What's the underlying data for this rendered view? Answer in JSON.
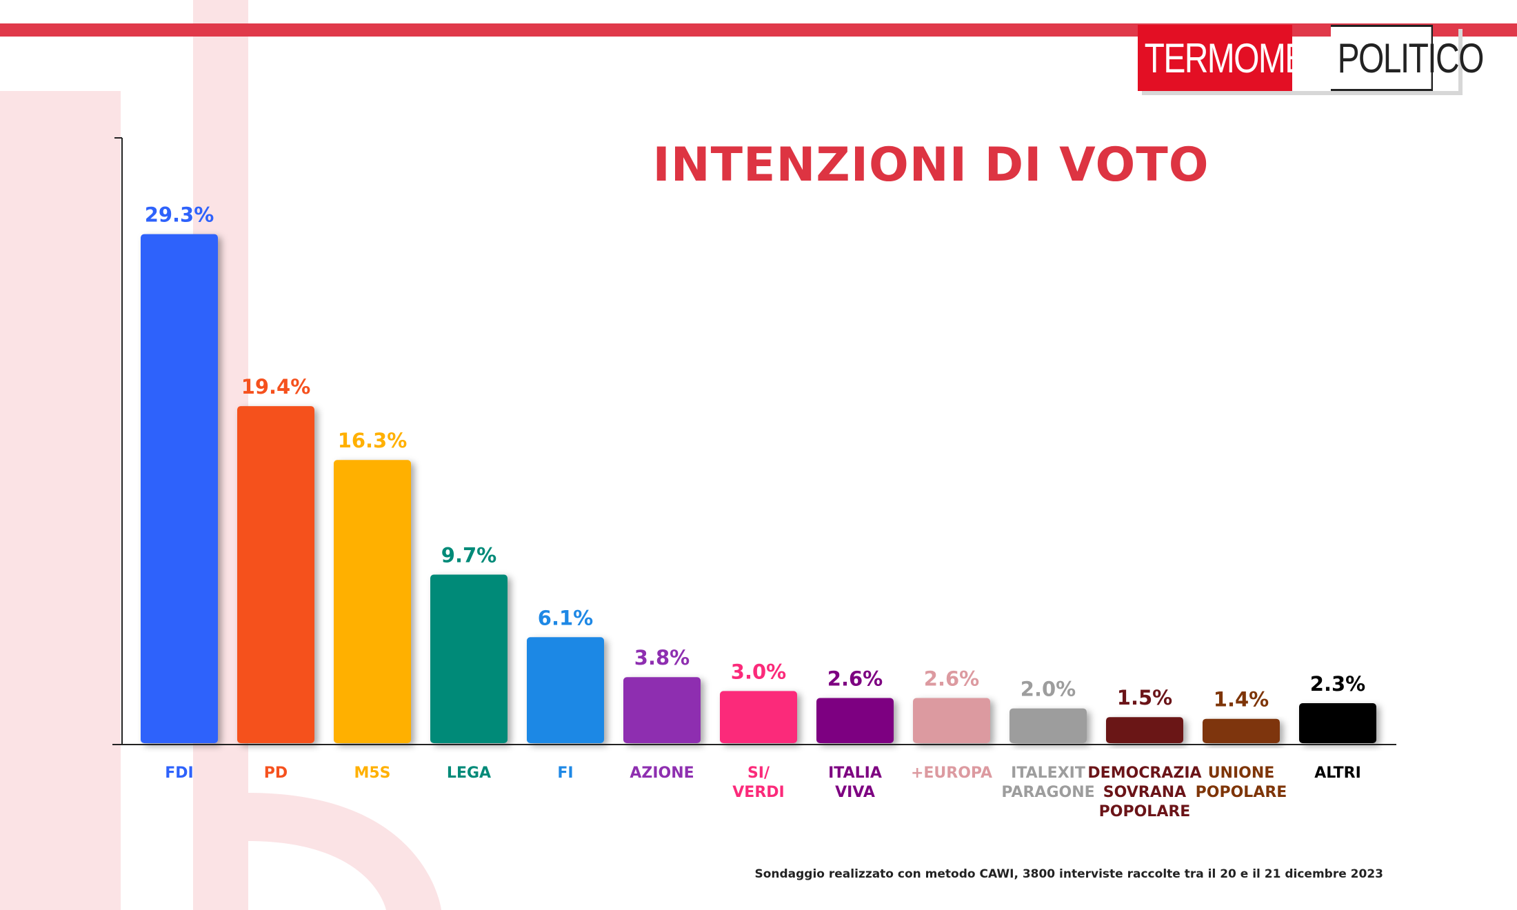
{
  "header": {
    "logo_left": "TERMOMETRO",
    "logo_right": "POLITICO",
    "stripe_color": "#e0394a"
  },
  "chart_data": {
    "type": "bar",
    "title": "INTENZIONI DI VOTO",
    "categories": [
      [
        "FDI"
      ],
      [
        "PD"
      ],
      [
        "M5S"
      ],
      [
        "LEGA"
      ],
      [
        "FI"
      ],
      [
        "AZIONE"
      ],
      [
        "SI/",
        "VERDI"
      ],
      [
        "ITALIA",
        "VIVA"
      ],
      [
        "+EUROPA"
      ],
      [
        "ITALEXIT",
        "PARAGONE"
      ],
      [
        "DEMOCRAZIA",
        "SOVRANA",
        "POPOLARE"
      ],
      [
        "UNIONE",
        "POPOLARE"
      ],
      [
        "ALTRI"
      ]
    ],
    "values": [
      29.3,
      19.4,
      16.3,
      9.7,
      6.1,
      3.8,
      3.0,
      2.6,
      2.6,
      2.0,
      1.5,
      1.4,
      2.3
    ],
    "value_labels": [
      "29.3%",
      "19.4%",
      "16.3%",
      "9.7%",
      "6.1%",
      "3.8%",
      "3.0%",
      "2.6%",
      "2.6%",
      "2.0%",
      "1.5%",
      "1.4%",
      "2.3%"
    ],
    "colors": [
      "#2e62fb",
      "#f5511e",
      "#ffb000",
      "#008a78",
      "#1e88e5",
      "#8e2fb0",
      "#fb2a7a",
      "#7d0081",
      "#dc9aa0",
      "#9d9d9d",
      "#6b1418",
      "#7e3508",
      "#000000"
    ],
    "ylim": [
      0,
      35
    ],
    "xlabel": "",
    "ylabel": "",
    "grid": false,
    "legend": "none"
  },
  "footnote": "Sondaggio realizzato con metodo CAWI, 3800 interviste raccolte tra il 20 e il 21 dicembre 2023"
}
